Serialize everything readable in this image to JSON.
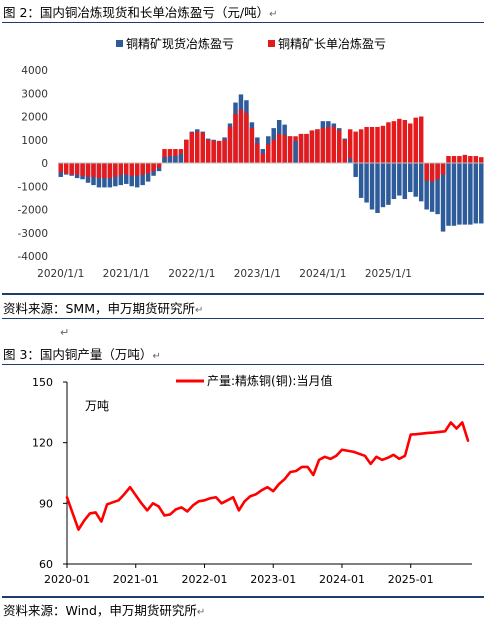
{
  "figure2": {
    "title": "图 2：国内铜冶炼现货和长单冶炼盈亏（元/吨）",
    "source": "资料来源：SMM，申万期货研究所",
    "chart_data": {
      "type": "bar",
      "x_tick_labels": [
        "2020/1/1",
        "2021/1/1",
        "2022/1/1",
        "2023/1/1",
        "2024/1/1",
        "2025/1/1"
      ],
      "ylim": [
        -4000,
        4000
      ],
      "y_ticks": [
        -4000,
        -3000,
        -2000,
        -1000,
        0,
        1000,
        2000,
        3000,
        4000
      ],
      "grid": false,
      "legend": "top",
      "colors": {
        "spot": "#2e5b9a",
        "long": "#e41a1c"
      },
      "series": [
        {
          "name": "铜精矿现货冶炼盈亏",
          "values": [
            -600,
            -500,
            -550,
            -650,
            -700,
            -850,
            -950,
            -1050,
            -1050,
            -1050,
            -1000,
            -950,
            -900,
            -1000,
            -1050,
            -950,
            -800,
            -550,
            -350,
            250,
            300,
            300,
            400,
            1000,
            1350,
            1450,
            1350,
            1050,
            1000,
            950,
            1100,
            1700,
            2600,
            2950,
            2700,
            1750,
            1100,
            600,
            1150,
            1500,
            1850,
            1650,
            1150,
            950,
            1250,
            1250,
            1400,
            1450,
            1800,
            1800,
            1700,
            1500,
            1050,
            200,
            -600,
            -1500,
            -1700,
            -2000,
            -2150,
            -1900,
            -1800,
            -1550,
            -1400,
            -1550,
            -1250,
            -1450,
            -1650,
            -2000,
            -2100,
            -2200,
            -2950,
            -2700,
            -2700,
            -2650,
            -2650,
            -2650,
            -2600,
            -2600
          ]
        },
        {
          "name": "铜精矿长单冶炼盈亏",
          "values": [
            -400,
            -450,
            -500,
            -500,
            -550,
            -600,
            -600,
            -650,
            -650,
            -650,
            -600,
            -500,
            -500,
            -550,
            -550,
            -500,
            -450,
            -350,
            -200,
            600,
            600,
            600,
            600,
            1000,
            1300,
            1350,
            1300,
            1000,
            950,
            950,
            1000,
            1550,
            2100,
            2300,
            2150,
            1500,
            850,
            400,
            800,
            1000,
            1250,
            1200,
            1150,
            1150,
            1250,
            1250,
            1400,
            1450,
            1500,
            1550,
            1550,
            1400,
            1000,
            1450,
            1350,
            1450,
            1550,
            1550,
            1550,
            1600,
            1750,
            1800,
            1900,
            1850,
            1700,
            1950,
            2000,
            -750,
            -800,
            -700,
            -500,
            300,
            300,
            300,
            350,
            300,
            300,
            250
          ]
        }
      ]
    }
  },
  "return_mark": "↵",
  "figure3": {
    "title": "图 3：国内铜产量（万吨）",
    "source": "资料来源：Wind，申万期货研究所",
    "chart_data": {
      "type": "line",
      "unit_label": "万吨",
      "x_tick_labels": [
        "2020-01",
        "2021-01",
        "2022-01",
        "2023-01",
        "2024-01",
        "2025-01"
      ],
      "ylim": [
        60,
        150
      ],
      "y_ticks": [
        60,
        90,
        120,
        150
      ],
      "grid": false,
      "legend": "top",
      "color": "#ff0000",
      "series": [
        {
          "name": "产量:精炼铜(铜):当月值",
          "x": [
            "2020-01",
            "2020-02",
            "2020-03",
            "2020-04",
            "2020-05",
            "2020-06",
            "2020-07",
            "2020-08",
            "2020-09",
            "2020-10",
            "2020-11",
            "2020-12",
            "2021-01",
            "2021-02",
            "2021-03",
            "2021-04",
            "2021-05",
            "2021-06",
            "2021-07",
            "2021-08",
            "2021-09",
            "2021-10",
            "2021-11",
            "2021-12",
            "2022-01",
            "2022-02",
            "2022-03",
            "2022-04",
            "2022-05",
            "2022-06",
            "2022-07",
            "2022-08",
            "2022-09",
            "2022-10",
            "2022-11",
            "2022-12",
            "2023-01",
            "2023-02",
            "2023-03",
            "2023-04",
            "2023-05",
            "2023-06",
            "2023-07",
            "2023-08",
            "2023-09",
            "2023-10",
            "2023-11",
            "2023-12",
            "2024-01",
            "2024-02",
            "2024-03",
            "2024-04",
            "2024-05",
            "2024-06",
            "2024-07",
            "2024-08",
            "2024-09",
            "2024-10",
            "2024-11",
            "2024-12",
            "2025-01",
            "2025-02",
            "2025-03",
            "2025-04",
            "2025-05",
            "2025-06",
            "2025-07",
            "2025-08",
            "2025-09",
            "2025-10",
            "2025-11"
          ],
          "values": [
            93.0,
            85.0,
            77.0,
            81.5,
            85.0,
            85.5,
            81.0,
            89.5,
            90.5,
            91.5,
            94.5,
            98.0,
            94.0,
            90.0,
            86.5,
            90.0,
            88.5,
            84.0,
            84.5,
            87.0,
            88.0,
            86.0,
            89.0,
            91.0,
            91.5,
            92.5,
            93.0,
            90.0,
            91.5,
            93.0,
            86.5,
            91.0,
            93.5,
            94.5,
            96.5,
            98.0,
            96.0,
            99.5,
            102.0,
            105.5,
            106.0,
            108.0,
            108.0,
            104.0,
            111.5,
            113.0,
            112.0,
            113.5,
            116.5,
            116.0,
            115.5,
            114.5,
            113.5,
            109.5,
            113.0,
            111.5,
            112.5,
            114.0,
            112.0,
            113.5,
            124.0,
            124.2,
            124.5,
            124.8,
            125.0,
            125.3,
            125.6,
            130.0,
            127.0,
            130.0,
            121.0
          ]
        }
      ]
    }
  }
}
